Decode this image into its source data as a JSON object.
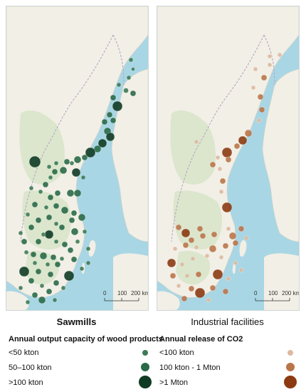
{
  "panels": {
    "left": {
      "title": "Sawmills",
      "legend_title": "Annual output capacity of wood products",
      "legend_items": [
        {
          "label": "<50 kton",
          "size_class": "small",
          "color": "#3d7a55"
        },
        {
          "label": "50–100 kton",
          "size_class": "medium",
          "color": "#2a6a48"
        },
        {
          "label": ">100 kton",
          "size_class": "large",
          "color": "#0f3b24"
        }
      ]
    },
    "right": {
      "title": "Industrial facilities",
      "legend_title": "Annual release of CO2",
      "legend_items": [
        {
          "label": "<100 kton",
          "size_class": "small",
          "color": "#dcb9a0"
        },
        {
          "label": "100 kton - 1 Mton",
          "size_class": "medium",
          "color": "#b9754a"
        },
        {
          "label": ">1 Mton",
          "size_class": "large",
          "color": "#8b3a12"
        }
      ]
    }
  },
  "scalebar": {
    "ticks": [
      "0",
      "100",
      "200 km"
    ]
  },
  "colors": {
    "sea": "#a9d6e4",
    "land": "#f2efe6",
    "forest": "#d2e3c2",
    "border": "#b7a6c2"
  }
}
